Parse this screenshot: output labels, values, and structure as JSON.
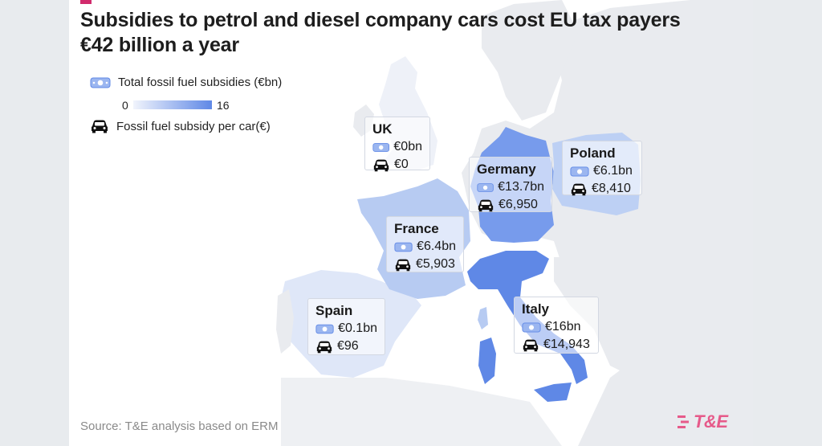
{
  "title": "Subsidies to petrol and diesel company cars cost EU tax payers €42 billion a year",
  "legend": {
    "total_label": "Total fossil fuel subsidies (€bn)",
    "scale_min": "0",
    "scale_max": "16",
    "per_car_label": "Fossil fuel subsidy per car(€)",
    "total_icon": "banknote-icon",
    "per_car_icon": "car-icon"
  },
  "countries": [
    {
      "name": "UK",
      "total": "€0bn",
      "per_car": "€0"
    },
    {
      "name": "Germany",
      "total": "€13.7bn",
      "per_car": "€6,950"
    },
    {
      "name": "Poland",
      "total": "€6.1bn",
      "per_car": "€8,410"
    },
    {
      "name": "France",
      "total": "€6.4bn",
      "per_car": "€5,903"
    },
    {
      "name": "Spain",
      "total": "€0.1bn",
      "per_car": "€96"
    },
    {
      "name": "Italy",
      "total": "€16bn",
      "per_car": "€14,943"
    }
  ],
  "source": "Source: T&E analysis based on ERM",
  "logo_text": "T&E",
  "colors": {
    "background_land": "#e6e8ec",
    "scale_low": "#f1f4fc",
    "scale_high": "#5f88e6",
    "accent": "#d12a6c",
    "logo": "#e65a8a"
  }
}
